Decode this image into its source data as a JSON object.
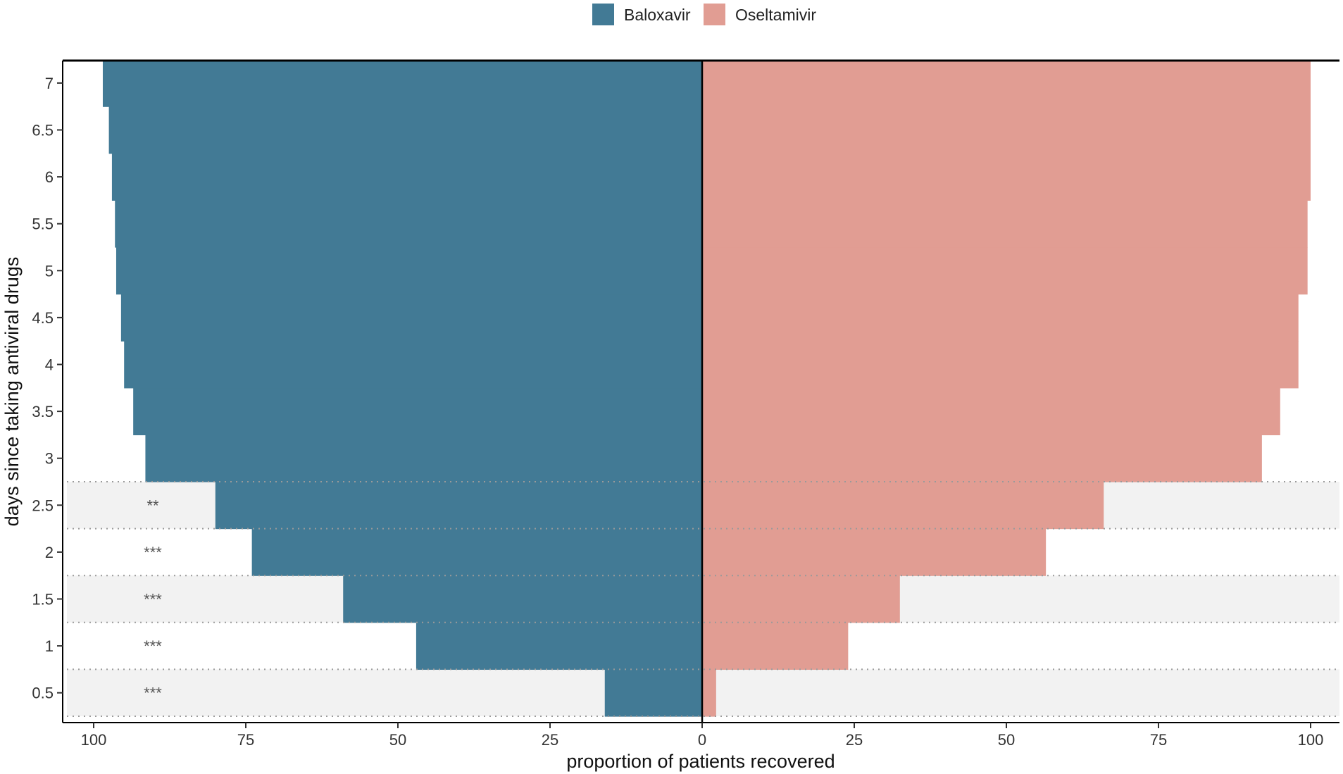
{
  "chart_data": {
    "type": "bar",
    "orientation": "horizontal-diverging",
    "xlabel": "proportion of patients recovered",
    "ylabel": "days since taking antiviral drugs",
    "xlim": [
      -100,
      100
    ],
    "ylim": [
      0.25,
      7.25
    ],
    "x_ticks": [
      -100,
      -75,
      -50,
      -25,
      0,
      25,
      50,
      75,
      100
    ],
    "x_tick_labels": [
      "100",
      "75",
      "50",
      "25",
      "0",
      "25",
      "50",
      "75",
      "100"
    ],
    "y_ticks": [
      0.5,
      1,
      1.5,
      2,
      2.5,
      3,
      3.5,
      4,
      4.5,
      5,
      5.5,
      6,
      6.5,
      7
    ],
    "y_tick_labels": [
      "0.5",
      "1",
      "1.5",
      "2",
      "2.5",
      "3",
      "3.5",
      "4",
      "4.5",
      "5",
      "5.5",
      "6",
      "6.5",
      "7"
    ],
    "legend_position": "top",
    "series": [
      {
        "name": "Baloxavir",
        "color": "#427a95",
        "side": "left",
        "x": [
          0.5,
          1,
          1.5,
          2,
          2.5,
          3,
          3.5,
          4,
          4.5,
          5,
          5.5,
          6,
          6.5,
          7
        ],
        "values": [
          16,
          47,
          59,
          74,
          80,
          91.5,
          93.5,
          95,
          95.5,
          96.3,
          96.5,
          97,
          97.5,
          98.5
        ]
      },
      {
        "name": "Oseltamivir",
        "color": "#e19d93",
        "side": "right",
        "x": [
          0.5,
          1,
          1.5,
          2,
          2.5,
          3,
          3.5,
          4,
          4.5,
          5,
          5.5,
          6,
          6.5,
          7
        ],
        "values": [
          2.3,
          24,
          32.5,
          56.5,
          66,
          92,
          95,
          98,
          98,
          99.5,
          99.5,
          100,
          100,
          100
        ]
      }
    ],
    "significance": [
      {
        "x": 0.5,
        "label": "***"
      },
      {
        "x": 1,
        "label": "***"
      },
      {
        "x": 1.5,
        "label": "***"
      },
      {
        "x": 2,
        "label": "***"
      },
      {
        "x": 2.5,
        "label": "**"
      }
    ],
    "shaded_bands": [
      [
        0.25,
        0.75
      ],
      [
        1.25,
        1.75
      ],
      [
        2.25,
        2.75
      ]
    ],
    "band_color": "#f2f2f2",
    "grid": false
  }
}
